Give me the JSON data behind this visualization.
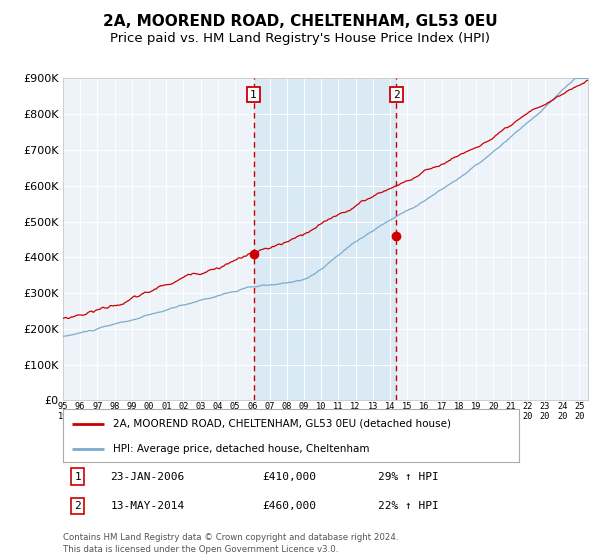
{
  "title": "2A, MOOREND ROAD, CHELTENHAM, GL53 0EU",
  "subtitle": "Price paid vs. HM Land Registry's House Price Index (HPI)",
  "hpi_label": "HPI: Average price, detached house, Cheltenham",
  "property_label": "2A, MOOREND ROAD, CHELTENHAM, GL53 0EU (detached house)",
  "footnote1": "Contains HM Land Registry data © Crown copyright and database right 2024.",
  "footnote2": "This data is licensed under the Open Government Licence v3.0.",
  "annotation1_label": "1",
  "annotation1_date": "23-JAN-2006",
  "annotation1_price": "£410,000",
  "annotation1_hpi": "29% ↑ HPI",
  "annotation2_label": "2",
  "annotation2_date": "13-MAY-2014",
  "annotation2_price": "£460,000",
  "annotation2_hpi": "22% ↑ HPI",
  "vline1_x": 2006.07,
  "vline2_x": 2014.37,
  "shade_start": 2006.07,
  "shade_end": 2014.37,
  "dot1_x": 2006.07,
  "dot1_y": 410000,
  "dot2_x": 2014.37,
  "dot2_y": 460000,
  "ylim": [
    0,
    900000
  ],
  "xlim": [
    1995.0,
    2025.5
  ],
  "red_color": "#cc0000",
  "blue_color": "#7aacce",
  "shade_color": "#daeaf5",
  "background_color": "#edf3f8",
  "title_fontsize": 11,
  "subtitle_fontsize": 9.5
}
